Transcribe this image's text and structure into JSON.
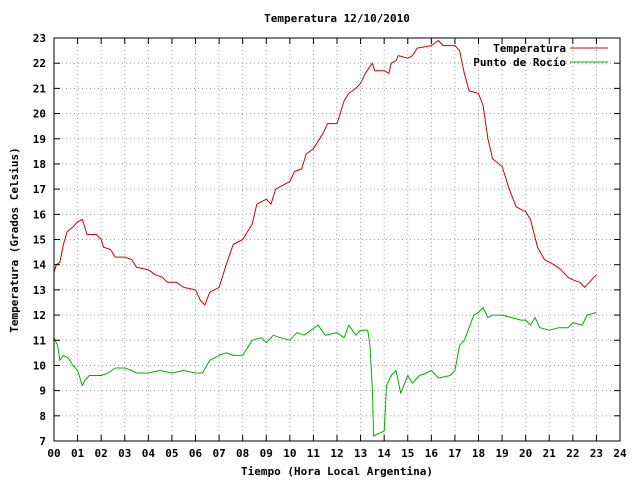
{
  "chart_data": {
    "type": "line",
    "title": "Temperatura 12/10/2010",
    "xlabel": "Tiempo (Hora Local Argentina)",
    "ylabel": "Temperatura (Grados Celsius)",
    "xlim": [
      0,
      24
    ],
    "ylim": [
      7,
      23
    ],
    "x_ticks": [
      "00",
      "01",
      "02",
      "03",
      "04",
      "05",
      "06",
      "07",
      "08",
      "09",
      "10",
      "11",
      "12",
      "13",
      "14",
      "15",
      "16",
      "17",
      "18",
      "19",
      "20",
      "21",
      "22",
      "23",
      "24"
    ],
    "y_ticks": [
      7,
      8,
      9,
      10,
      11,
      12,
      13,
      14,
      15,
      16,
      17,
      18,
      19,
      20,
      21,
      22,
      23
    ],
    "grid": true,
    "legend_position": "top-right",
    "series": [
      {
        "name": "Temperatura",
        "color": "#d40000",
        "points": [
          [
            0.0,
            13.7
          ],
          [
            0.1,
            14.0
          ],
          [
            0.25,
            14.1
          ],
          [
            0.4,
            14.8
          ],
          [
            0.55,
            15.3
          ],
          [
            0.8,
            15.5
          ],
          [
            1.0,
            15.7
          ],
          [
            1.2,
            15.8
          ],
          [
            1.4,
            15.2
          ],
          [
            1.8,
            15.2
          ],
          [
            2.0,
            15.0
          ],
          [
            2.1,
            14.7
          ],
          [
            2.4,
            14.6
          ],
          [
            2.6,
            14.3
          ],
          [
            3.0,
            14.3
          ],
          [
            3.3,
            14.2
          ],
          [
            3.5,
            13.9
          ],
          [
            4.0,
            13.8
          ],
          [
            4.3,
            13.6
          ],
          [
            4.6,
            13.5
          ],
          [
            4.8,
            13.3
          ],
          [
            5.2,
            13.3
          ],
          [
            5.5,
            13.1
          ],
          [
            6.0,
            13.0
          ],
          [
            6.2,
            12.6
          ],
          [
            6.4,
            12.4
          ],
          [
            6.6,
            12.9
          ],
          [
            7.0,
            13.1
          ],
          [
            7.3,
            14.0
          ],
          [
            7.6,
            14.8
          ],
          [
            8.0,
            15.0
          ],
          [
            8.2,
            15.3
          ],
          [
            8.4,
            15.6
          ],
          [
            8.6,
            16.4
          ],
          [
            9.0,
            16.6
          ],
          [
            9.2,
            16.4
          ],
          [
            9.4,
            17.0
          ],
          [
            9.8,
            17.2
          ],
          [
            10.0,
            17.3
          ],
          [
            10.2,
            17.7
          ],
          [
            10.5,
            17.8
          ],
          [
            10.7,
            18.4
          ],
          [
            11.0,
            18.6
          ],
          [
            11.2,
            18.9
          ],
          [
            11.4,
            19.2
          ],
          [
            11.6,
            19.6
          ],
          [
            12.0,
            19.6
          ],
          [
            12.3,
            20.5
          ],
          [
            12.5,
            20.8
          ],
          [
            12.8,
            21.0
          ],
          [
            13.0,
            21.2
          ],
          [
            13.2,
            21.6
          ],
          [
            13.5,
            22.0
          ],
          [
            13.6,
            21.7
          ],
          [
            14.0,
            21.7
          ],
          [
            14.2,
            21.6
          ],
          [
            14.3,
            22.0
          ],
          [
            14.5,
            22.1
          ],
          [
            14.6,
            22.3
          ],
          [
            15.0,
            22.2
          ],
          [
            15.2,
            22.3
          ],
          [
            15.4,
            22.6
          ],
          [
            16.0,
            22.7
          ],
          [
            16.3,
            22.9
          ],
          [
            16.5,
            22.7
          ],
          [
            17.0,
            22.7
          ],
          [
            17.2,
            22.5
          ],
          [
            17.4,
            21.6
          ],
          [
            17.6,
            20.9
          ],
          [
            18.0,
            20.8
          ],
          [
            18.2,
            20.3
          ],
          [
            18.4,
            19.0
          ],
          [
            18.6,
            18.2
          ],
          [
            19.0,
            17.9
          ],
          [
            19.3,
            17.0
          ],
          [
            19.6,
            16.3
          ],
          [
            20.0,
            16.1
          ],
          [
            20.2,
            15.8
          ],
          [
            20.5,
            14.7
          ],
          [
            20.8,
            14.2
          ],
          [
            21.0,
            14.1
          ],
          [
            21.2,
            14.0
          ],
          [
            21.5,
            13.8
          ],
          [
            21.8,
            13.5
          ],
          [
            22.0,
            13.4
          ],
          [
            22.3,
            13.3
          ],
          [
            22.5,
            13.1
          ],
          [
            22.7,
            13.3
          ],
          [
            23.0,
            13.6
          ]
        ]
      },
      {
        "name": "Punto de Rocío",
        "color": "#00b000",
        "points": [
          [
            0.0,
            11.1
          ],
          [
            0.15,
            10.8
          ],
          [
            0.25,
            10.2
          ],
          [
            0.4,
            10.4
          ],
          [
            0.6,
            10.3
          ],
          [
            0.8,
            10.0
          ],
          [
            1.0,
            9.8
          ],
          [
            1.2,
            9.2
          ],
          [
            1.3,
            9.4
          ],
          [
            1.5,
            9.6
          ],
          [
            2.0,
            9.6
          ],
          [
            2.3,
            9.7
          ],
          [
            2.6,
            9.9
          ],
          [
            3.0,
            9.9
          ],
          [
            3.3,
            9.8
          ],
          [
            3.5,
            9.7
          ],
          [
            4.0,
            9.7
          ],
          [
            4.5,
            9.8
          ],
          [
            5.0,
            9.7
          ],
          [
            5.5,
            9.8
          ],
          [
            6.0,
            9.7
          ],
          [
            6.3,
            9.7
          ],
          [
            6.6,
            10.2
          ],
          [
            7.0,
            10.4
          ],
          [
            7.3,
            10.5
          ],
          [
            7.6,
            10.4
          ],
          [
            8.0,
            10.4
          ],
          [
            8.2,
            10.7
          ],
          [
            8.4,
            11.0
          ],
          [
            8.8,
            11.1
          ],
          [
            9.0,
            10.9
          ],
          [
            9.3,
            11.2
          ],
          [
            9.6,
            11.1
          ],
          [
            10.0,
            11.0
          ],
          [
            10.3,
            11.3
          ],
          [
            10.6,
            11.2
          ],
          [
            10.9,
            11.4
          ],
          [
            11.2,
            11.6
          ],
          [
            11.5,
            11.2
          ],
          [
            12.0,
            11.3
          ],
          [
            12.3,
            11.1
          ],
          [
            12.5,
            11.6
          ],
          [
            12.8,
            11.2
          ],
          [
            13.0,
            11.4
          ],
          [
            13.3,
            11.4
          ],
          [
            13.4,
            10.8
          ],
          [
            13.5,
            9.0
          ],
          [
            13.55,
            7.2
          ],
          [
            14.0,
            7.4
          ],
          [
            14.1,
            9.2
          ],
          [
            14.3,
            9.6
          ],
          [
            14.5,
            9.8
          ],
          [
            14.7,
            8.9
          ],
          [
            15.0,
            9.6
          ],
          [
            15.2,
            9.3
          ],
          [
            15.5,
            9.6
          ],
          [
            15.8,
            9.7
          ],
          [
            16.0,
            9.8
          ],
          [
            16.3,
            9.5
          ],
          [
            16.8,
            9.6
          ],
          [
            17.0,
            9.8
          ],
          [
            17.2,
            10.8
          ],
          [
            17.4,
            11.0
          ],
          [
            17.6,
            11.5
          ],
          [
            17.8,
            12.0
          ],
          [
            18.0,
            12.1
          ],
          [
            18.2,
            12.3
          ],
          [
            18.4,
            11.9
          ],
          [
            18.6,
            12.0
          ],
          [
            19.0,
            12.0
          ],
          [
            19.4,
            11.9
          ],
          [
            19.8,
            11.8
          ],
          [
            20.0,
            11.8
          ],
          [
            20.2,
            11.6
          ],
          [
            20.4,
            11.9
          ],
          [
            20.6,
            11.5
          ],
          [
            21.0,
            11.4
          ],
          [
            21.4,
            11.5
          ],
          [
            21.8,
            11.5
          ],
          [
            22.0,
            11.7
          ],
          [
            22.4,
            11.6
          ],
          [
            22.6,
            12.0
          ],
          [
            23.0,
            12.1
          ]
        ]
      }
    ]
  }
}
